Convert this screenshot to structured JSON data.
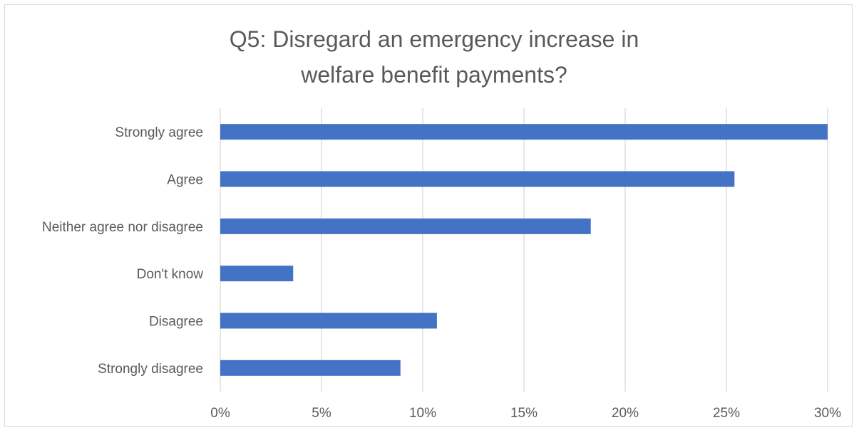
{
  "chart_data": {
    "type": "bar",
    "orientation": "horizontal",
    "title": "Q5: Disregard an emergency increase in welfare benefit payments?",
    "xlabel": "",
    "ylabel": "",
    "categories": [
      "Strongly agree",
      "Agree",
      "Neither agree nor disagree",
      "Don't know",
      "Disagree",
      "Strongly disagree"
    ],
    "values": [
      30.0,
      25.4,
      18.3,
      3.6,
      10.7,
      8.9
    ],
    "xlim": [
      0,
      30
    ],
    "x_ticks": [
      0,
      5,
      10,
      15,
      20,
      25,
      30
    ],
    "x_tick_labels": [
      "0%",
      "5%",
      "10%",
      "15%",
      "20%",
      "25%",
      "30%"
    ],
    "grid": "vertical",
    "legend": "none",
    "bar_color": "#4472c4"
  }
}
